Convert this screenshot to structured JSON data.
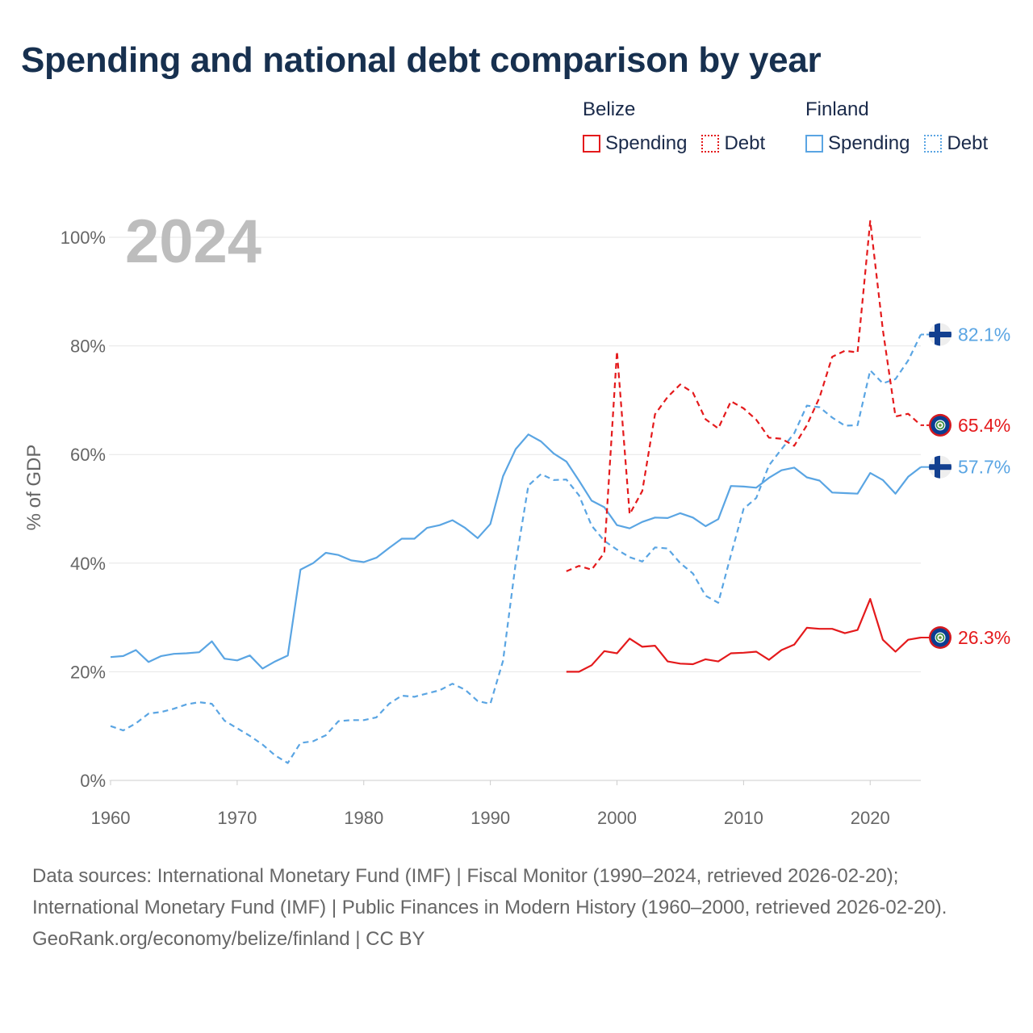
{
  "title": "Spending and national debt comparison by year",
  "legend": {
    "groups": [
      {
        "name": "Belize",
        "items": [
          {
            "label": "Spending",
            "style": "solid"
          },
          {
            "label": "Debt",
            "style": "dotted"
          }
        ]
      },
      {
        "name": "Finland",
        "items": [
          {
            "label": "Spending",
            "style": "solid"
          },
          {
            "label": "Debt",
            "style": "dotted"
          }
        ]
      }
    ]
  },
  "year_label": "2024",
  "footer": {
    "sources": "Data sources: International Monetary Fund (IMF) | Fiscal Monitor (1990–2024, retrieved 2026-02-20); International Monetary Fund (IMF) | Public Finances in Modern History (1960–2000, retrieved 2026-02-20).",
    "credit": "GeoRank.org/economy/belize/finland | CC BY"
  },
  "colors": {
    "belize": "#e41a1c",
    "finland": "#5aa5e3",
    "grid": "#e6e6e6",
    "axis_text": "#666666",
    "year_label": "#bdbdbd"
  },
  "chart_data": {
    "type": "line",
    "title": "Spending and national debt comparison by year",
    "xlabel": "",
    "ylabel": "% of GDP",
    "xlim": [
      1960,
      2024
    ],
    "ylim": [
      0,
      100
    ],
    "xticks": [
      1960,
      1970,
      1980,
      1990,
      2000,
      2010,
      2020
    ],
    "yticks": [
      0,
      20,
      40,
      60,
      80,
      100
    ],
    "ytick_labels": [
      "0%",
      "20%",
      "40%",
      "60%",
      "80%",
      "100%"
    ],
    "grid": true,
    "series": [
      {
        "name": "Finland Spending",
        "country": "Finland",
        "metric": "Spending",
        "style": "solid",
        "color": "#5aa5e3",
        "x": [
          1960,
          1961,
          1962,
          1963,
          1964,
          1965,
          1966,
          1967,
          1968,
          1969,
          1970,
          1971,
          1972,
          1973,
          1974,
          1975,
          1976,
          1977,
          1978,
          1979,
          1980,
          1981,
          1982,
          1983,
          1984,
          1985,
          1986,
          1987,
          1988,
          1989,
          1990,
          1991,
          1992,
          1993,
          1994,
          1995,
          1996,
          1997,
          1998,
          1999,
          2000,
          2001,
          2002,
          2003,
          2004,
          2005,
          2006,
          2007,
          2008,
          2009,
          2010,
          2011,
          2012,
          2013,
          2014,
          2015,
          2016,
          2017,
          2018,
          2019,
          2020,
          2021,
          2022,
          2023,
          2024
        ],
        "values": [
          22.7,
          22.9,
          24.0,
          21.8,
          22.9,
          23.3,
          23.4,
          23.6,
          25.6,
          22.4,
          22.1,
          23.0,
          20.6,
          21.9,
          23.0,
          38.8,
          40.0,
          41.9,
          41.5,
          40.5,
          40.2,
          41.0,
          42.8,
          44.5,
          44.5,
          46.5,
          47.0,
          47.9,
          46.5,
          44.6,
          47.2,
          56.0,
          61.0,
          63.7,
          62.4,
          60.2,
          58.7,
          55.2,
          51.5,
          50.3,
          47.0,
          46.4,
          47.6,
          48.4,
          48.3,
          49.2,
          48.4,
          46.8,
          48.1,
          54.2,
          54.1,
          53.9,
          55.7,
          57.1,
          57.6,
          55.8,
          55.2,
          53.0,
          52.9,
          52.8,
          56.6,
          55.3,
          52.8,
          55.9,
          57.7
        ],
        "end_label": "57.7%"
      },
      {
        "name": "Finland Debt",
        "country": "Finland",
        "metric": "Debt",
        "style": "dashed",
        "color": "#5aa5e3",
        "x": [
          1960,
          1961,
          1962,
          1963,
          1964,
          1965,
          1966,
          1967,
          1968,
          1969,
          1970,
          1971,
          1972,
          1973,
          1974,
          1975,
          1976,
          1977,
          1978,
          1979,
          1980,
          1981,
          1982,
          1983,
          1984,
          1985,
          1986,
          1987,
          1988,
          1989,
          1990,
          1991,
          1992,
          1993,
          1994,
          1995,
          1996,
          1997,
          1998,
          1999,
          2000,
          2001,
          2002,
          2003,
          2004,
          2005,
          2006,
          2007,
          2008,
          2009,
          2010,
          2011,
          2012,
          2013,
          2014,
          2015,
          2016,
          2017,
          2018,
          2019,
          2020,
          2021,
          2022,
          2023,
          2024
        ],
        "values": [
          10.0,
          9.2,
          10.5,
          12.3,
          12.6,
          13.2,
          14.0,
          14.4,
          14.1,
          11.0,
          9.6,
          8.2,
          6.6,
          4.6,
          3.2,
          6.9,
          7.2,
          8.3,
          10.9,
          11.1,
          11.1,
          11.6,
          14.1,
          15.6,
          15.4,
          16.0,
          16.6,
          17.8,
          16.7,
          14.6,
          14.1,
          22.0,
          40.0,
          54.3,
          56.4,
          55.3,
          55.4,
          52.5,
          46.9,
          44.1,
          42.5,
          41.1,
          40.3,
          42.9,
          42.7,
          40.0,
          38.1,
          34.0,
          32.7,
          41.5,
          50.0,
          52.0,
          58.0,
          61.0,
          63.9,
          69.0,
          68.7,
          66.8,
          65.3,
          65.4,
          75.5,
          73.1,
          73.9,
          77.3,
          82.1
        ],
        "end_label": "82.1%"
      },
      {
        "name": "Belize Spending",
        "country": "Belize",
        "metric": "Spending",
        "style": "solid",
        "color": "#e41a1c",
        "x": [
          1996,
          1997,
          1998,
          1999,
          2000,
          2001,
          2002,
          2003,
          2004,
          2005,
          2006,
          2007,
          2008,
          2009,
          2010,
          2011,
          2012,
          2013,
          2014,
          2015,
          2016,
          2017,
          2018,
          2019,
          2020,
          2021,
          2022,
          2023,
          2024
        ],
        "values": [
          20.0,
          20.0,
          21.2,
          23.8,
          23.4,
          26.1,
          24.6,
          24.8,
          21.9,
          21.5,
          21.4,
          22.3,
          21.9,
          23.4,
          23.5,
          23.7,
          22.2,
          24.0,
          25.0,
          28.1,
          27.9,
          27.9,
          27.1,
          27.7,
          33.4,
          25.9,
          23.7,
          25.9,
          26.3
        ],
        "end_label": "26.3%"
      },
      {
        "name": "Belize Debt",
        "country": "Belize",
        "metric": "Debt",
        "style": "dashed",
        "color": "#e41a1c",
        "x": [
          1996,
          1997,
          1998,
          1999,
          2000,
          2001,
          2002,
          2003,
          2004,
          2005,
          2006,
          2007,
          2008,
          2009,
          2010,
          2011,
          2012,
          2013,
          2014,
          2015,
          2016,
          2017,
          2018,
          2019,
          2020,
          2021,
          2022,
          2023,
          2024
        ],
        "values": [
          38.5,
          39.5,
          38.8,
          41.9,
          79.0,
          49.0,
          53.3,
          67.4,
          70.6,
          72.9,
          71.4,
          66.5,
          64.8,
          69.8,
          68.5,
          66.4,
          63.1,
          62.9,
          61.6,
          65.4,
          70.5,
          78.0,
          79.1,
          78.8,
          103.0,
          83.0,
          67.0,
          67.5,
          65.4
        ],
        "end_label": "65.4%"
      }
    ]
  }
}
